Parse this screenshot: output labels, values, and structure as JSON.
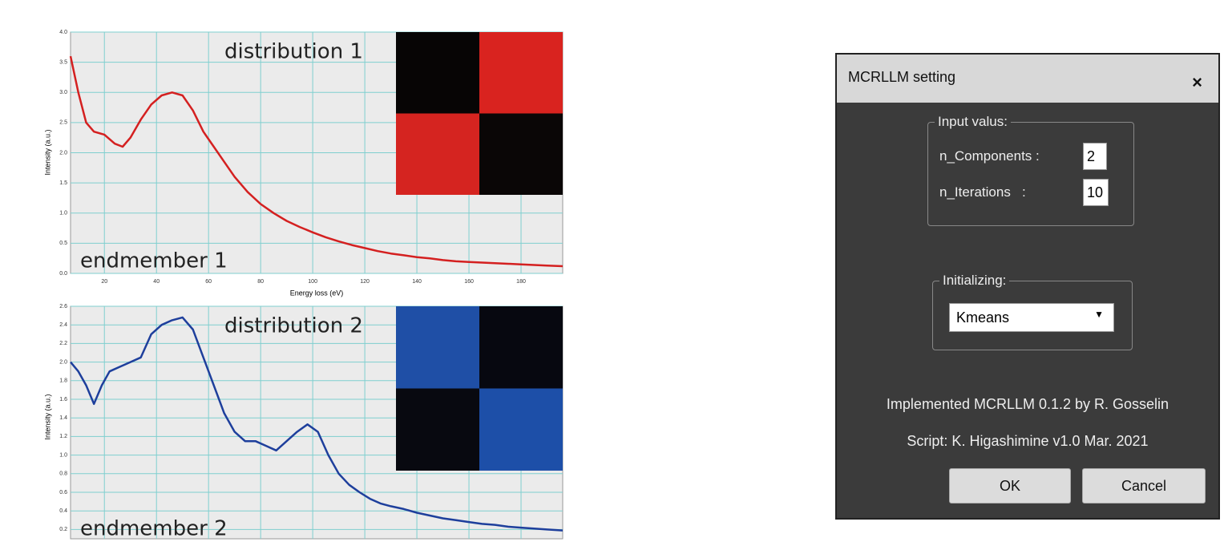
{
  "chart_data": [
    {
      "type": "line",
      "x_label": "Energy loss (eV)",
      "y_label": "Intensity (a.u.)",
      "annotations": [
        "distribution 1",
        "endmember 1"
      ],
      "color": "#d42020",
      "x": [
        7,
        10,
        13,
        16,
        20,
        24,
        27,
        30,
        34,
        38,
        42,
        46,
        50,
        54,
        58,
        62,
        66,
        70,
        75,
        80,
        85,
        90,
        95,
        100,
        105,
        110,
        115,
        120,
        125,
        130,
        135,
        140,
        145,
        150,
        155,
        160,
        165,
        170,
        175,
        180,
        185,
        190,
        196
      ],
      "values": [
        3.6,
        3.0,
        2.5,
        2.35,
        2.3,
        2.15,
        2.1,
        2.25,
        2.55,
        2.8,
        2.95,
        3.0,
        2.95,
        2.7,
        2.35,
        2.1,
        1.85,
        1.6,
        1.35,
        1.15,
        1.0,
        0.87,
        0.77,
        0.68,
        0.6,
        0.53,
        0.47,
        0.42,
        0.37,
        0.33,
        0.3,
        0.27,
        0.25,
        0.22,
        0.2,
        0.19,
        0.18,
        0.17,
        0.16,
        0.15,
        0.14,
        0.13,
        0.12
      ],
      "xlim": [
        7,
        196
      ],
      "xticks": [
        20,
        40,
        60,
        80,
        100,
        120,
        140,
        160,
        180
      ],
      "ylim": [
        0,
        4
      ],
      "yticks": [
        {
          "value": 0,
          "label": "0.0"
        },
        0.5,
        {
          "value": 1,
          "label": "1.0"
        },
        1.5,
        {
          "value": 2,
          "label": "2.0"
        },
        2.5,
        {
          "value": 3,
          "label": "3.0"
        },
        3.5,
        {
          "value": 4,
          "label": "4.0"
        }
      ],
      "grid": true
    },
    {
      "type": "line",
      "y_label": "Intensity (a.u.)",
      "annotations": [
        "distribution 2",
        "endmember 2"
      ],
      "color": "#1e3f9c",
      "x": [
        7,
        10,
        13,
        16,
        19,
        22,
        26,
        30,
        34,
        38,
        42,
        46,
        50,
        54,
        58,
        62,
        66,
        70,
        74,
        78,
        82,
        86,
        90,
        94,
        98,
        102,
        106,
        110,
        114,
        118,
        122,
        126,
        130,
        135,
        140,
        145,
        150,
        155,
        160,
        165,
        170,
        175,
        180,
        185,
        190,
        196
      ],
      "values": [
        2.0,
        1.9,
        1.75,
        1.55,
        1.75,
        1.9,
        1.95,
        2.0,
        2.05,
        2.3,
        2.4,
        2.45,
        2.48,
        2.35,
        2.05,
        1.75,
        1.45,
        1.25,
        1.15,
        1.15,
        1.1,
        1.05,
        1.15,
        1.25,
        1.33,
        1.25,
        1.0,
        0.8,
        0.68,
        0.6,
        0.53,
        0.48,
        0.45,
        0.42,
        0.38,
        0.35,
        0.32,
        0.3,
        0.28,
        0.26,
        0.25,
        0.23,
        0.22,
        0.21,
        0.2,
        0.19
      ],
      "xlim": [
        7,
        196
      ],
      "ylim": [
        0.1,
        2.6
      ],
      "yticks": [
        0.2,
        0.4,
        0.6,
        0.8,
        {
          "value": 1,
          "label": "1.0"
        },
        1.2,
        1.4,
        1.6,
        1.8,
        {
          "value": 2,
          "label": "2.0"
        },
        2.2,
        2.4,
        2.6
      ],
      "grid": true
    }
  ],
  "dialog": {
    "title": "MCRLLM setting",
    "close": "×",
    "input_group": {
      "legend": "Input valus:",
      "fields": [
        {
          "label": "n_Components :",
          "value": 2
        },
        {
          "label": "n_Iterations   :",
          "value": 10
        }
      ]
    },
    "init_group": {
      "legend": "Initializing:",
      "selected": "Kmeans"
    },
    "credits": [
      "Implemented MCRLLM 0.1.2 by R. Gosselin",
      "Script: K. Higashimine v1.0 Mar. 2021"
    ],
    "buttons": [
      "OK",
      "Cancel"
    ]
  }
}
